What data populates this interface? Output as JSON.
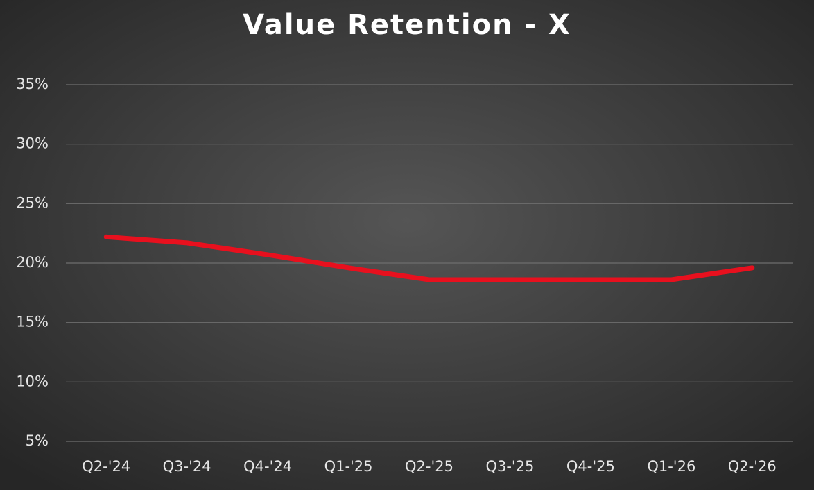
{
  "chart_data": {
    "type": "line",
    "title": "Value Retention - X",
    "categories": [
      "Q2-'24",
      "Q3-'24",
      "Q4-'24",
      "Q1-'25",
      "Q2-'25",
      "Q3-'25",
      "Q4-'25",
      "Q1-'26",
      "Q2-'26"
    ],
    "series": [
      {
        "name": "Value Retention",
        "color": "#e8101e",
        "values": [
          22.2,
          21.7,
          20.7,
          19.6,
          18.6,
          18.6,
          18.6,
          18.6,
          19.6
        ]
      }
    ],
    "ylim": [
      5,
      35
    ],
    "yticks": [
      {
        "value": 5,
        "label": "5%"
      },
      {
        "value": 10,
        "label": "10%"
      },
      {
        "value": 15,
        "label": "15%"
      },
      {
        "value": 20,
        "label": "20%"
      },
      {
        "value": 25,
        "label": "25%"
      },
      {
        "value": 30,
        "label": "30%"
      },
      {
        "value": 35,
        "label": "35%"
      }
    ],
    "grid": true
  }
}
